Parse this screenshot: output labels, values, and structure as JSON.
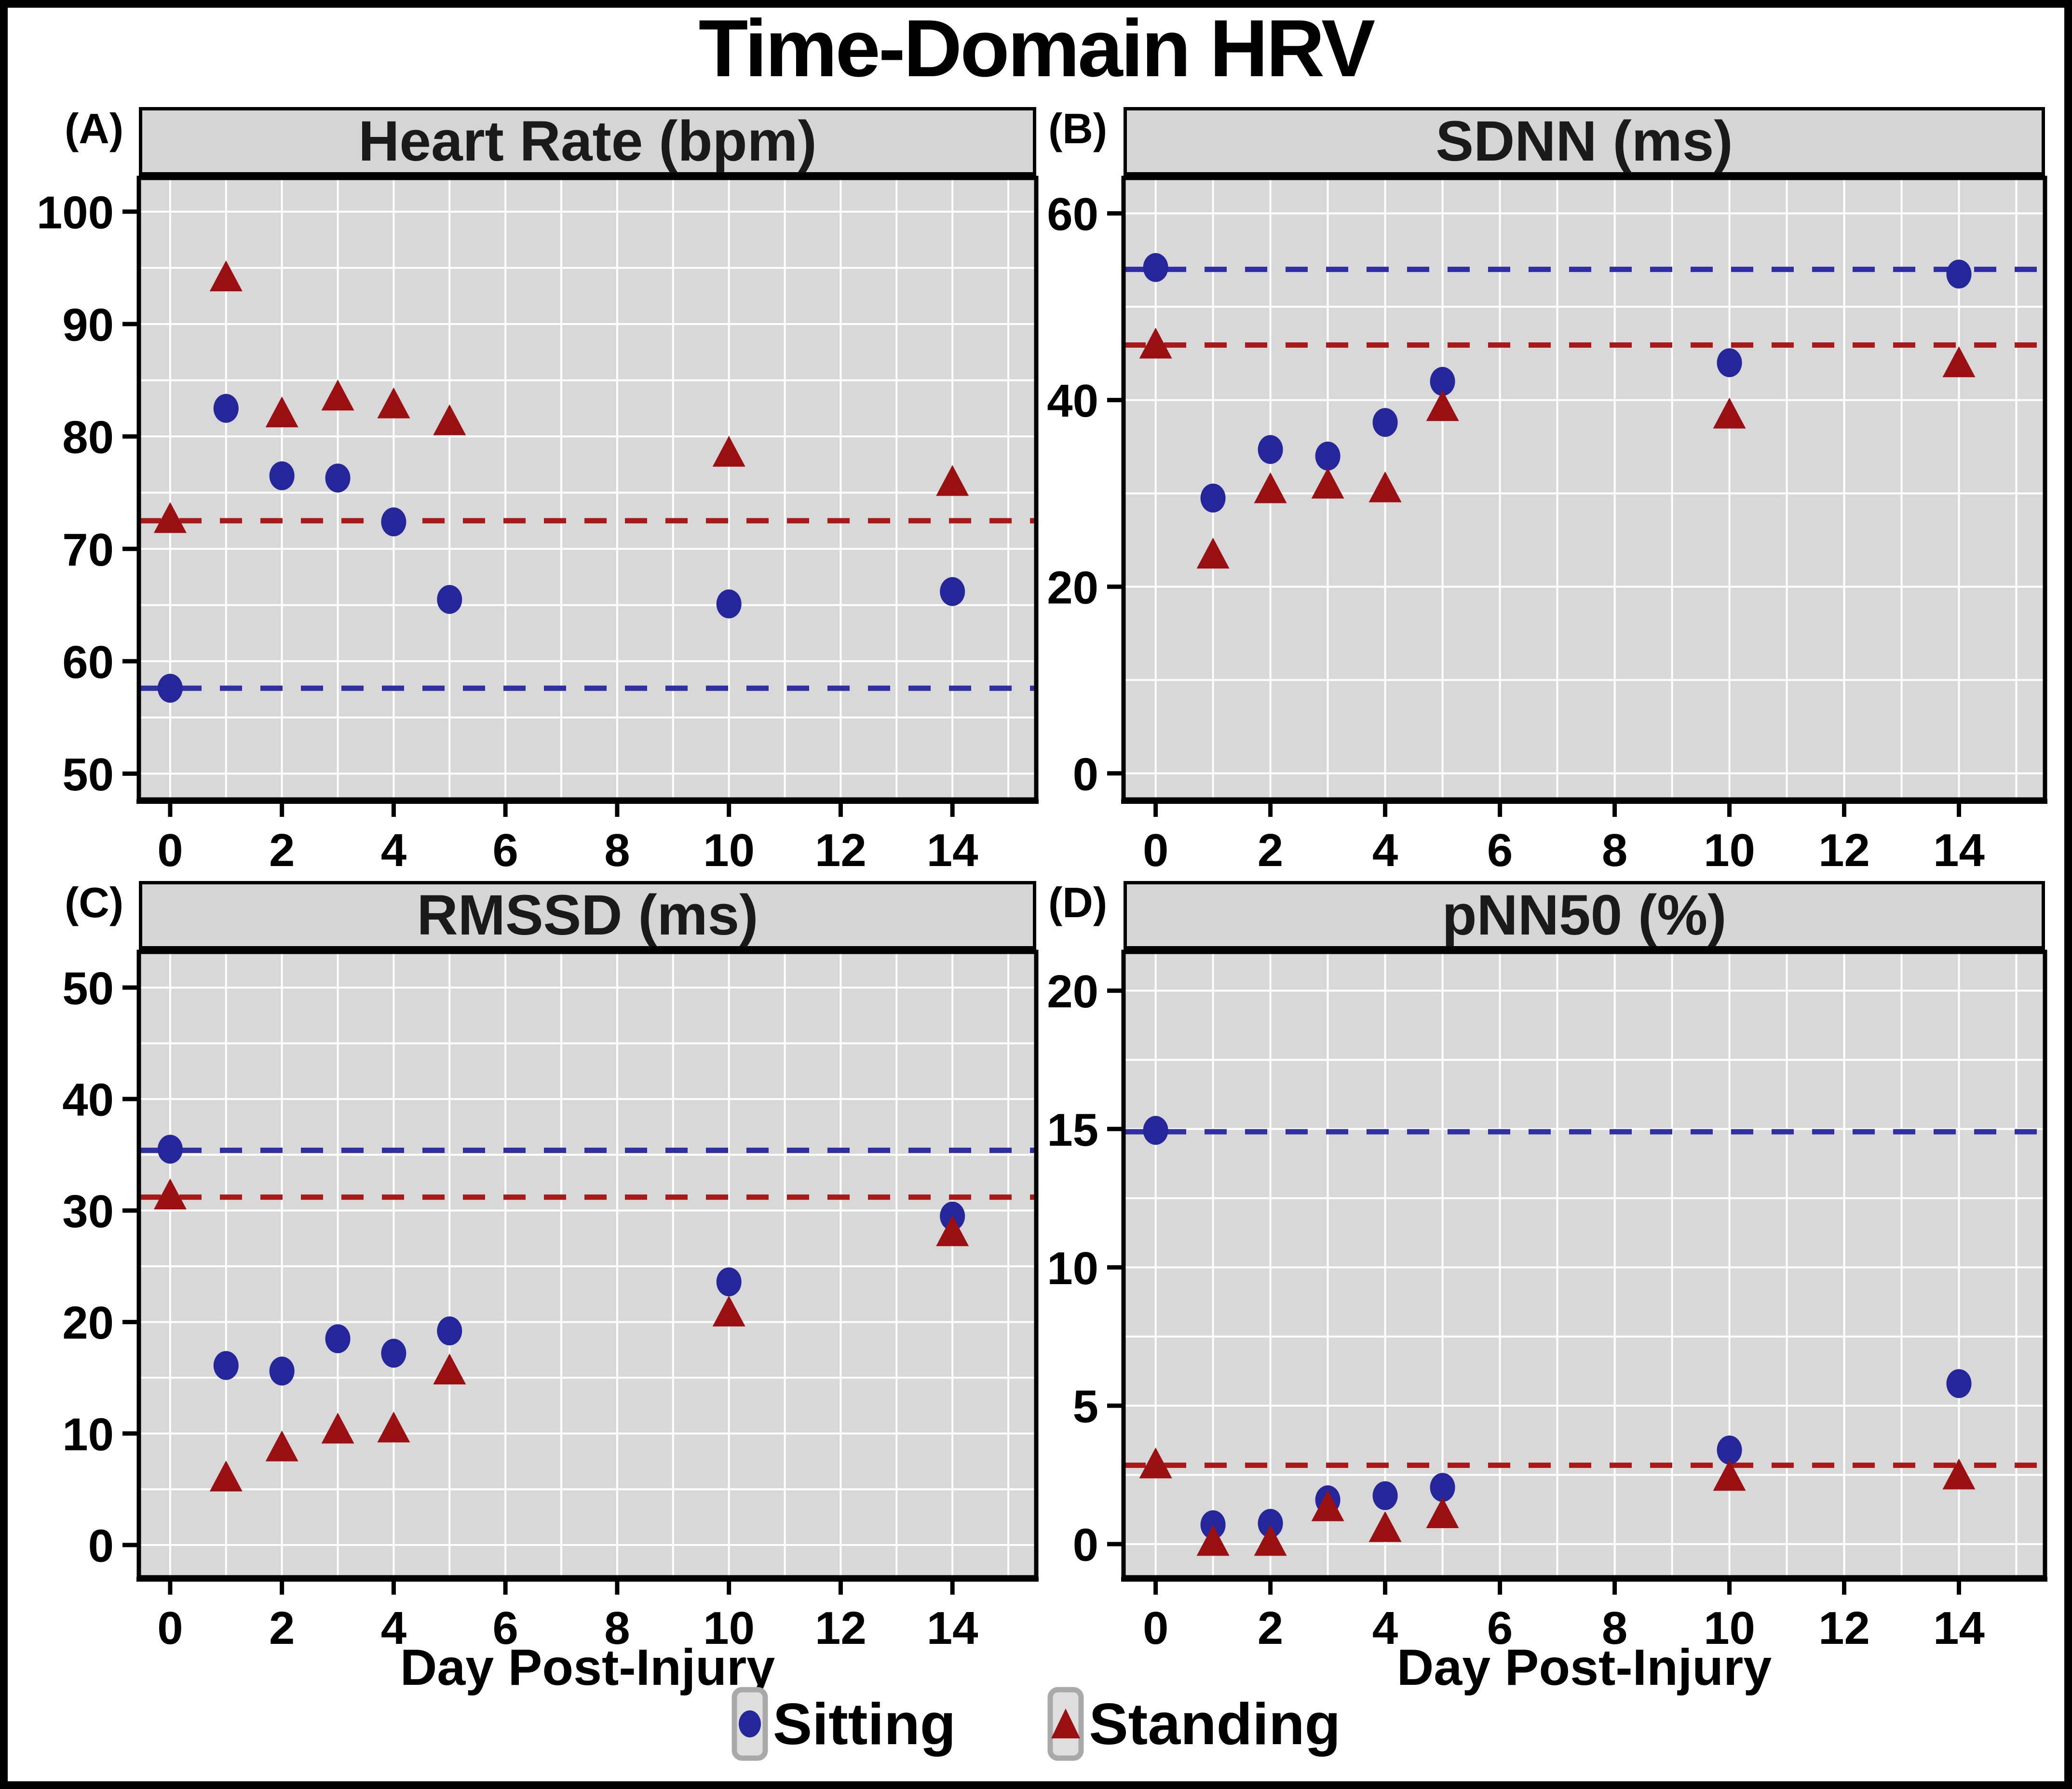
{
  "title": "Time-Domain HRV",
  "x_axis_label": "Day Post-Injury",
  "colors": {
    "sitting": "#26269b",
    "standing": "#9a1012",
    "sitting_dash": "#2f2fa2",
    "standing_dash": "#a81a1a",
    "plot_bg": "#d8d8d8",
    "header_bg": "#d5d5d5",
    "gridline": "#ffffff"
  },
  "legend": {
    "items": [
      {
        "label": "Sitting",
        "marker": "circle",
        "color": "#26269b"
      },
      {
        "label": "Standing",
        "marker": "triangle",
        "color": "#9a1012"
      }
    ]
  },
  "chart_data": [
    {
      "id": "A",
      "tag": "(A)",
      "type": "scatter",
      "title": "Heart Rate (bpm)",
      "xlabel": "Day Post-Injury",
      "ylabel": "Heart Rate (bpm)",
      "xlim": [
        -0.56,
        15.5
      ],
      "xticks": [
        0,
        2,
        4,
        6,
        8,
        10,
        12,
        14
      ],
      "x_grid_step": 1,
      "ylim": [
        47.7,
        103.0
      ],
      "yticks": [
        50,
        60,
        70,
        80,
        90,
        100
      ],
      "y_minor_step": 5,
      "grid": true,
      "x": [
        0,
        1,
        2,
        3,
        4,
        5,
        10,
        14
      ],
      "series": [
        {
          "name": "Sitting",
          "marker": "circle",
          "color": "#26269b",
          "values": [
            57.6,
            82.5,
            76.5,
            76.3,
            72.4,
            65.5,
            65.1,
            66.2
          ]
        },
        {
          "name": "Standing",
          "marker": "triangle",
          "color": "#9a1012",
          "values": [
            72.7,
            94.2,
            82.1,
            83.6,
            82.9,
            81.4,
            78.6,
            76.0
          ]
        }
      ],
      "baselines": [
        {
          "series": "Sitting",
          "value": 57.6,
          "color": "#2f2fa2"
        },
        {
          "series": "Standing",
          "value": 72.5,
          "color": "#a81a1a"
        }
      ]
    },
    {
      "id": "B",
      "tag": "(B)",
      "type": "scatter",
      "title": "SDNN (ms)",
      "xlabel": "Day Post-Injury",
      "ylabel": "SDNN (ms)",
      "xlim": [
        -0.56,
        15.5
      ],
      "xticks": [
        0,
        2,
        4,
        6,
        8,
        10,
        12,
        14
      ],
      "x_grid_step": 1,
      "ylim": [
        -2.8,
        63.8
      ],
      "yticks": [
        0,
        20,
        40,
        60
      ],
      "y_minor_step": 10,
      "grid": true,
      "x": [
        0,
        1,
        2,
        3,
        4,
        5,
        10,
        14
      ],
      "series": [
        {
          "name": "Sitting",
          "marker": "circle",
          "color": "#26269b",
          "values": [
            54.2,
            29.5,
            34.7,
            34.0,
            37.6,
            42.0,
            44.0,
            53.5
          ]
        },
        {
          "name": "Standing",
          "marker": "triangle",
          "color": "#9a1012",
          "values": [
            46.0,
            23.5,
            30.5,
            31.0,
            30.6,
            39.3,
            38.5,
            44.0
          ]
        }
      ],
      "baselines": [
        {
          "series": "Sitting",
          "value": 54.0,
          "color": "#2f2fa2"
        },
        {
          "series": "Standing",
          "value": 45.9,
          "color": "#a81a1a"
        }
      ]
    },
    {
      "id": "C",
      "tag": "(C)",
      "type": "scatter",
      "title": "RMSSD (ms)",
      "xlabel": "Day Post-Injury",
      "ylabel": "RMSSD (ms)",
      "xlim": [
        -0.56,
        15.5
      ],
      "xticks": [
        0,
        2,
        4,
        6,
        8,
        10,
        12,
        14
      ],
      "x_grid_step": 1,
      "ylim": [
        -2.9,
        53.2
      ],
      "yticks": [
        0,
        10,
        20,
        30,
        40,
        50
      ],
      "y_minor_step": 5,
      "grid": true,
      "x": [
        0,
        1,
        2,
        3,
        4,
        5,
        10,
        14
      ],
      "series": [
        {
          "name": "Sitting",
          "marker": "circle",
          "color": "#26269b",
          "values": [
            35.5,
            16.1,
            15.6,
            18.5,
            17.2,
            19.2,
            23.6,
            29.5
          ]
        },
        {
          "name": "Standing",
          "marker": "triangle",
          "color": "#9a1012",
          "values": [
            31.4,
            6.1,
            8.8,
            10.4,
            10.5,
            15.7,
            20.9,
            28.1
          ]
        }
      ],
      "baselines": [
        {
          "series": "Sitting",
          "value": 35.4,
          "color": "#2f2fa2"
        },
        {
          "series": "Standing",
          "value": 31.2,
          "color": "#a81a1a"
        }
      ]
    },
    {
      "id": "D",
      "tag": "(D)",
      "type": "scatter",
      "title": "pNN50 (%)",
      "xlabel": "Day Post-Injury",
      "ylabel": "pNN50 (%)",
      "xlim": [
        -0.56,
        15.5
      ],
      "xticks": [
        0,
        2,
        4,
        6,
        8,
        10,
        12,
        14
      ],
      "x_grid_step": 1,
      "ylim": [
        -1.2,
        21.4
      ],
      "yticks": [
        0,
        5,
        10,
        15,
        20
      ],
      "y_minor_step": 2.5,
      "grid": true,
      "x": [
        0,
        1,
        2,
        3,
        4,
        5,
        10,
        14
      ],
      "series": [
        {
          "name": "Sitting",
          "marker": "circle",
          "color": "#26269b",
          "values": [
            14.95,
            0.7,
            0.75,
            1.6,
            1.75,
            2.05,
            3.4,
            5.8
          ]
        },
        {
          "name": "Standing",
          "marker": "triangle",
          "color": "#9a1012",
          "values": [
            2.9,
            0.1,
            0.1,
            1.35,
            0.6,
            1.1,
            2.45,
            2.5
          ]
        }
      ],
      "baselines": [
        {
          "series": "Sitting",
          "value": 14.9,
          "color": "#2f2fa2"
        },
        {
          "series": "Standing",
          "value": 2.85,
          "color": "#a81a1a"
        }
      ]
    }
  ]
}
